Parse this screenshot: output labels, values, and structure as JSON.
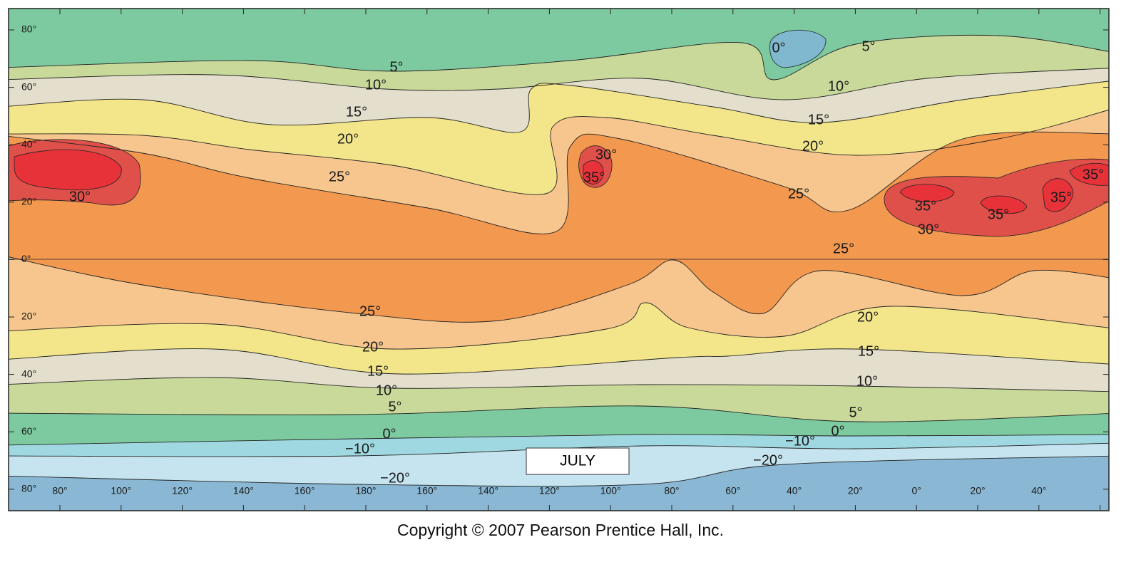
{
  "map": {
    "title": "JULY",
    "latitude_labels": [
      "80°",
      "60°",
      "40°",
      "20°",
      "0°",
      "20°",
      "40°",
      "60°",
      "80°"
    ],
    "longitude_labels": [
      "80°",
      "100°",
      "120°",
      "140°",
      "160°",
      "180°",
      "160°",
      "140°",
      "120°",
      "100°",
      "80°",
      "60°",
      "40°",
      "20°",
      "0°",
      "20°",
      "40°"
    ],
    "isotherm_labels": [
      "0°",
      "5°",
      "5°",
      "10°",
      "10°",
      "15°",
      "15°",
      "20°",
      "20°",
      "25°",
      "25°",
      "30°",
      "35°",
      "30°",
      "35°",
      "35°",
      "35°",
      "35°",
      "30°",
      "25°",
      "25°",
      "20°",
      "20°",
      "15°",
      "15°",
      "10°",
      "10°",
      "5°",
      "5°",
      "0°",
      "0°",
      "−10°",
      "−10°",
      "−20°",
      "−20°"
    ]
  },
  "footer": {
    "copyright": "Copyright © 2007 Pearson Prentice Hall, Inc."
  }
}
